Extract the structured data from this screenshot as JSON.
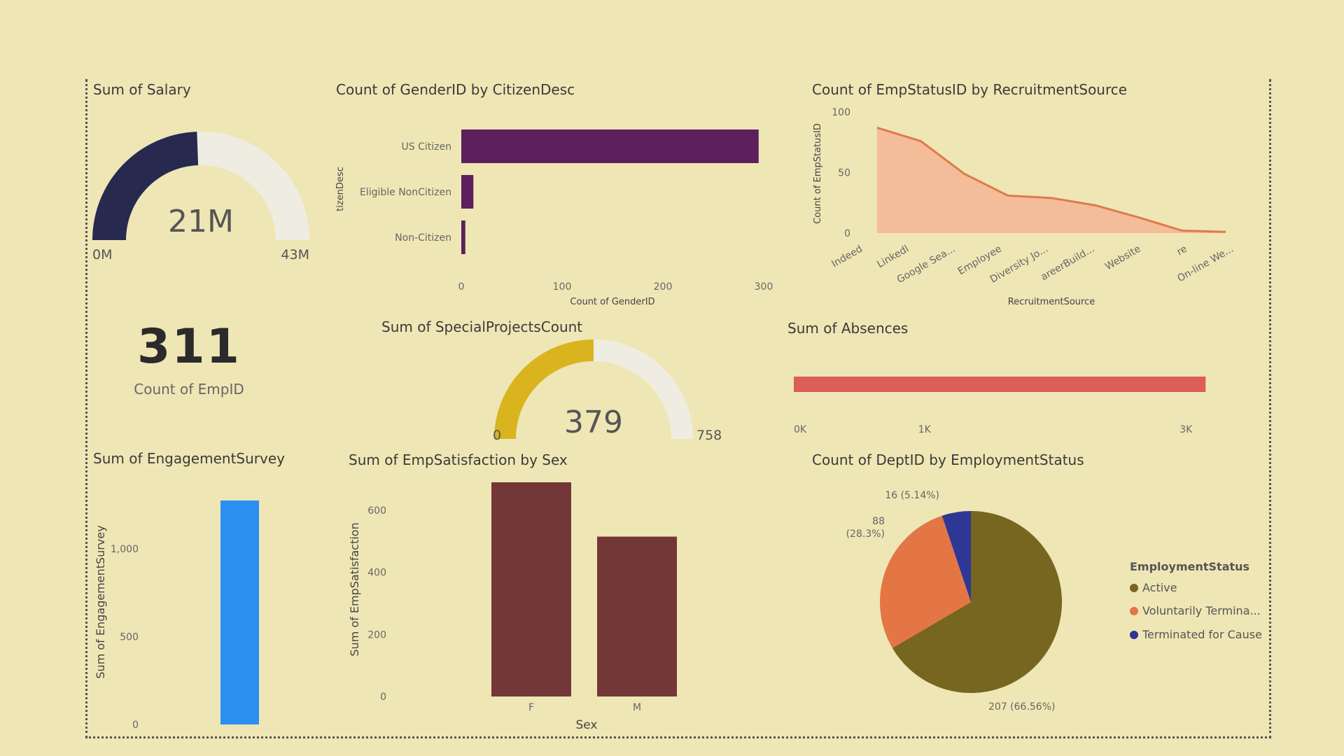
{
  "colors": {
    "background": "#efe6b5",
    "salary_fill": "#27294f",
    "gauge_track": "#efede1",
    "citizen_bar": "#5e1f5e",
    "recruit_area": "#f3bd9a",
    "recruit_line": "#e07a4a",
    "projects_fill": "#d9b41e",
    "absences_bar": "#dd5d58",
    "engagement_bar": "#2b8ff0",
    "satisfaction_bar": "#743737",
    "pie_active": "#776620",
    "pie_voluntary": "#e37644",
    "pie_cause": "#2f3796"
  },
  "salary": {
    "title": "Sum of Salary",
    "value_label": "21M",
    "min_label": "0M",
    "max_label": "43M",
    "value": 21,
    "max": 43
  },
  "empcount": {
    "value": "311",
    "label": "Count of EmpID"
  },
  "chart_data": [
    {
      "type": "bar",
      "orientation": "horizontal",
      "title": "Count of GenderID by CitizenDesc",
      "ylabel": "tizenDesc",
      "xlabel": "Count of GenderID",
      "categories": [
        "US Citizen",
        "Eligible NonCitizen",
        "Non-Citizen"
      ],
      "values": [
        295,
        12,
        4
      ],
      "xticks": [
        "0",
        "100",
        "200",
        "300"
      ],
      "xlim": [
        0,
        300
      ]
    },
    {
      "type": "area",
      "title": "Count of EmpStatusID by RecruitmentSource",
      "ylabel": "Count of EmpStatusID",
      "xlabel": "RecruitmentSource",
      "categories": [
        "Indeed",
        "Linkedl",
        "Google Sea...",
        "Employee",
        "Diversity Jo...",
        "areerBuild...",
        "Website",
        "re",
        "On-line We..."
      ],
      "values": [
        87,
        76,
        49,
        31,
        29,
        23,
        13,
        2,
        1
      ],
      "yticks": [
        "0",
        "50",
        "100"
      ],
      "ylim": [
        0,
        100
      ]
    },
    {
      "type": "bar",
      "orientation": "horizontal",
      "title": "Sum of Absences",
      "values": [
        3150
      ],
      "xticks": [
        "0K",
        "1K",
        "3K"
      ],
      "xlim": [
        0,
        3400
      ]
    },
    {
      "type": "bar",
      "title": "Sum of EngagementSurvey",
      "ylabel": "Sum of EngagementSurvey",
      "categories": [
        ""
      ],
      "values": [
        1275
      ],
      "yticks": [
        "0",
        "500",
        "1,000"
      ],
      "ylim": [
        0,
        1275
      ]
    },
    {
      "type": "bar",
      "title": "Sum of EmpSatisfaction by Sex",
      "ylabel": "Sum of EmpSatisfaction",
      "xlabel": "Sex",
      "categories": [
        "F",
        "M"
      ],
      "values": [
        690,
        515
      ],
      "yticks": [
        "0",
        "200",
        "400",
        "600"
      ],
      "ylim": [
        0,
        690
      ]
    },
    {
      "type": "pie",
      "title": "Count of DeptID by EmploymentStatus",
      "legend_title": "EmploymentStatus",
      "legend_position": "right",
      "slices": [
        {
          "name": "Active",
          "value": 207,
          "label": "207 (66.56%)"
        },
        {
          "name": "Voluntarily Termina...",
          "value": 88,
          "label": "88",
          "label2": "(28.3%)"
        },
        {
          "name": "Terminated for Cause",
          "value": 16,
          "label": "16 (5.14%)"
        }
      ]
    }
  ],
  "projects": {
    "title": "Sum of SpecialProjectsCount",
    "value_label": "379",
    "min_label": "0",
    "max_label": "758",
    "value": 379,
    "max": 758
  }
}
